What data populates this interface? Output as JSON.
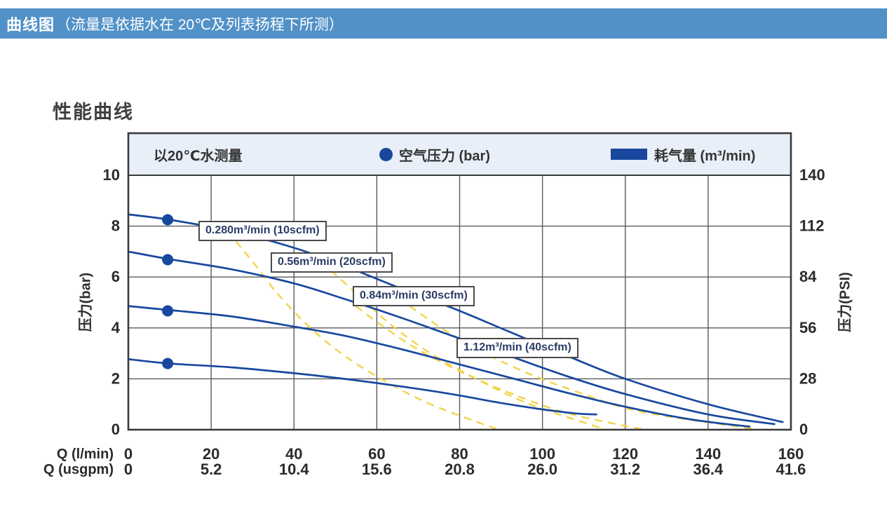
{
  "page": {
    "header_bold": "曲线图",
    "header_rest": "（流量是依据水在 20℃及列表扬程下所测）",
    "section_title": "性能曲线"
  },
  "colors": {
    "header_bg": "#5191c8",
    "legend_bg": "#e9eff8",
    "plot_border": "#3a3a3a",
    "grid": "#5a5a5a",
    "curve_blue": "#17489e",
    "curve_yellow": "#f2d44a",
    "tick_text": "#2b2b2b"
  },
  "legend": {
    "note": "以20℃水测量",
    "pressure_label": "空气压力 (bar)",
    "consumption_label": "耗气量 (m³/min)"
  },
  "chart_data": {
    "type": "line",
    "title": "性能曲线",
    "grid": true,
    "x_axis": {
      "name_primary": "Q (l/min)",
      "name_secondary": "Q (usgpm)",
      "range_lmin": [
        0,
        160
      ],
      "ticks_lmin": [
        "0",
        "20",
        "40",
        "60",
        "80",
        "100",
        "120",
        "140",
        "160"
      ],
      "ticks_usgpm": [
        "0",
        "5.2",
        "10.4",
        "15.6",
        "20.8",
        "26.0",
        "31.2",
        "36.4",
        "41.6"
      ]
    },
    "y_axis_left": {
      "name": "压力(bar)",
      "range": [
        0,
        10
      ],
      "ticks": [
        "10",
        "8",
        "6",
        "4",
        "2",
        "0"
      ]
    },
    "y_axis_right": {
      "name": "压力(PSI)",
      "range": [
        0,
        140
      ],
      "ticks": [
        "140",
        "112",
        "84",
        "56",
        "28",
        "0"
      ]
    },
    "series": [
      {
        "name": "air-pressure-8.4bar",
        "style": "solid",
        "points": [
          [
            0,
            8.46
          ],
          [
            10,
            8.25
          ],
          [
            25,
            7.8
          ],
          [
            40,
            7.15
          ],
          [
            52,
            6.45
          ],
          [
            65,
            5.6
          ],
          [
            78,
            4.8
          ],
          [
            92,
            3.85
          ],
          [
            106,
            2.9
          ],
          [
            120,
            2.0
          ],
          [
            140,
            1.0
          ],
          [
            158,
            0.3
          ]
        ]
      },
      {
        "name": "air-pressure-7bar",
        "style": "solid",
        "points": [
          [
            0,
            7.0
          ],
          [
            10,
            6.7
          ],
          [
            25,
            6.3
          ],
          [
            40,
            5.75
          ],
          [
            52,
            5.15
          ],
          [
            65,
            4.45
          ],
          [
            78,
            3.7
          ],
          [
            92,
            2.9
          ],
          [
            106,
            2.1
          ],
          [
            120,
            1.4
          ],
          [
            140,
            0.6
          ],
          [
            156,
            0.22
          ]
        ]
      },
      {
        "name": "air-pressure-4.9bar",
        "style": "solid",
        "points": [
          [
            0,
            4.86
          ],
          [
            10,
            4.7
          ],
          [
            25,
            4.45
          ],
          [
            40,
            4.05
          ],
          [
            52,
            3.7
          ],
          [
            65,
            3.2
          ],
          [
            78,
            2.65
          ],
          [
            92,
            2.05
          ],
          [
            106,
            1.45
          ],
          [
            120,
            0.9
          ],
          [
            136,
            0.4
          ],
          [
            150,
            0.12
          ]
        ]
      },
      {
        "name": "air-pressure-2.8bar",
        "style": "solid",
        "points": [
          [
            0,
            2.77
          ],
          [
            10,
            2.6
          ],
          [
            25,
            2.45
          ],
          [
            40,
            2.22
          ],
          [
            52,
            2.0
          ],
          [
            65,
            1.72
          ],
          [
            78,
            1.4
          ],
          [
            90,
            1.05
          ],
          [
            100,
            0.8
          ],
          [
            108,
            0.64
          ],
          [
            113,
            0.6
          ]
        ]
      },
      {
        "name": "consumption-0.280",
        "style": "dashed",
        "points": [
          [
            26,
            7.4
          ],
          [
            31,
            6.4
          ],
          [
            36,
            5.35
          ],
          [
            43,
            4.15
          ],
          [
            51,
            3.05
          ],
          [
            61,
            2.0
          ],
          [
            73,
            1.0
          ],
          [
            89,
            0.02
          ]
        ]
      },
      {
        "name": "consumption-0.56",
        "style": "dashed",
        "points": [
          [
            44,
            6.9
          ],
          [
            50,
            6.1
          ],
          [
            57,
            5.05
          ],
          [
            64,
            4.05
          ],
          [
            73,
            3.0
          ],
          [
            84,
            2.0
          ],
          [
            97,
            1.0
          ],
          [
            115,
            0.02
          ]
        ]
      },
      {
        "name": "consumption-0.84",
        "style": "dashed",
        "points": [
          [
            55,
            4.85
          ],
          [
            62,
            4.0
          ],
          [
            70,
            3.15
          ],
          [
            80,
            2.3
          ],
          [
            92,
            1.45
          ],
          [
            106,
            0.65
          ],
          [
            124,
            0.02
          ]
        ]
      },
      {
        "name": "consumption-1.12",
        "style": "dashed",
        "points": [
          [
            68,
            4.85
          ],
          [
            76,
            3.95
          ],
          [
            85,
            3.1
          ],
          [
            96,
            2.25
          ],
          [
            109,
            1.45
          ],
          [
            124,
            0.7
          ],
          [
            152,
            0.01
          ]
        ]
      }
    ],
    "markers": [
      {
        "q": 9.5,
        "p": 8.25
      },
      {
        "q": 9.5,
        "p": 6.68
      },
      {
        "q": 9.5,
        "p": 4.67
      },
      {
        "q": 9.5,
        "p": 2.6
      }
    ],
    "callouts": [
      {
        "label": "0.280m³/min (10scfm)",
        "q": 17.0,
        "p": 8.2
      },
      {
        "label": "0.56m³/min (20scfm)",
        "q": 34.3,
        "p": 6.97
      },
      {
        "label": "0.84m³/min (30scfm)",
        "q": 54.2,
        "p": 5.65
      },
      {
        "label": "1.12m³/min (40scfm)",
        "q": 79.3,
        "p": 3.6
      }
    ]
  }
}
